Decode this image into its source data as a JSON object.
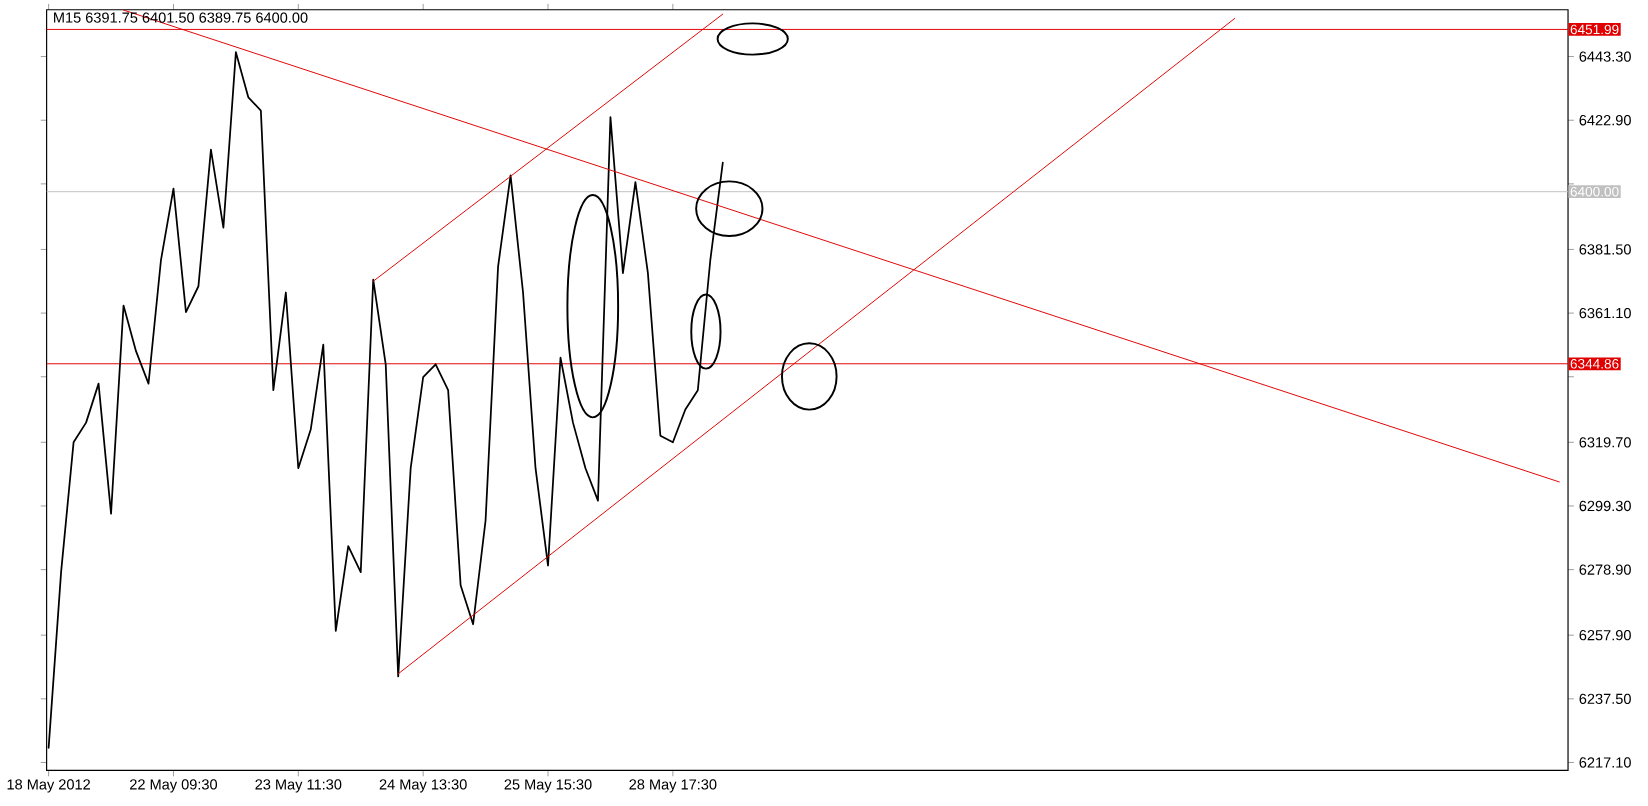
{
  "chart_data": {
    "type": "line",
    "title": "M15  6391.75 6401.50 6389.75 6400.00",
    "categories": [
      "18 May 2012",
      null,
      null,
      null,
      null,
      null,
      null,
      null,
      null,
      null,
      "22 May 09:30",
      null,
      null,
      null,
      null,
      null,
      null,
      null,
      null,
      null,
      "23 May 11:30",
      null,
      null,
      null,
      null,
      null,
      null,
      null,
      null,
      null,
      "24 May 13:30",
      null,
      null,
      null,
      null,
      null,
      null,
      null,
      null,
      null,
      "25 May 15:30",
      null,
      null,
      null,
      null,
      null,
      null,
      null,
      null,
      null,
      "28 May 17:30",
      null,
      null,
      null,
      null,
      null,
      null,
      null,
      null,
      null,
      null,
      null,
      null,
      null,
      null,
      null,
      null,
      null,
      null,
      null,
      null,
      null,
      null,
      null,
      null,
      null,
      null,
      null,
      null,
      null,
      null,
      null,
      null,
      null,
      null,
      null,
      null,
      null,
      null,
      null,
      null,
      null,
      null,
      null,
      null,
      null,
      null,
      null,
      null,
      null,
      null,
      null,
      null,
      null,
      null,
      null,
      null,
      null,
      null,
      null,
      null,
      null,
      null,
      null,
      null,
      null,
      null,
      null,
      null,
      null,
      null,
      null,
      null
    ],
    "ylim": [
      6214.55,
      6458.3
    ],
    "yticks": [
      {
        "value": 6217.1,
        "label": "6217.10"
      },
      {
        "value": 6237.5,
        "label": "6237.50"
      },
      {
        "value": 6257.9,
        "label": "6257.90"
      },
      {
        "value": 6278.9,
        "label": "6278.90"
      },
      {
        "value": 6299.3,
        "label": "6299.30"
      },
      {
        "value": 6319.7,
        "label": "6319.70"
      },
      {
        "value": 6340.7,
        "label": null
      },
      {
        "value": 6361.1,
        "label": "6361.10"
      },
      {
        "value": 6381.5,
        "label": "6381.50"
      },
      {
        "value": 6402.5,
        "label": null
      },
      {
        "value": 6422.9,
        "label": "6422.90"
      },
      {
        "value": 6443.3,
        "label": "6443.30"
      }
    ],
    "series": [
      {
        "color": "#000000",
        "values": [
          6221.8,
          6278.1,
          6319.7,
          6326.0,
          6338.5,
          6296.8,
          6363.5,
          6348.9,
          6338.5,
          6378.1,
          6401.0,
          6361.4,
          6369.7,
          6413.5,
          6388.5,
          6444.7,
          6430.2,
          6426.0,
          6336.4,
          6367.7,
          6311.4,
          6323.9,
          6351.0,
          6259.3,
          6286.4,
          6278.1,
          6371.8,
          6344.7,
          6244.7,
          6311.4,
          6340.6,
          6344.7,
          6336.4,
          6273.9,
          6261.4,
          6294.7,
          6376.0,
          6405.2,
          6367.7,
          6311.4,
          6280.2,
          6346.8,
          6326.0,
          6311.4,
          6301.0,
          6423.9,
          6373.9,
          6403.1,
          6373.9,
          6321.8,
          6319.7,
          6330.2,
          6336.4,
          6378.1,
          6409.3,
          null,
          null,
          null,
          null,
          null,
          null,
          null,
          null,
          null,
          null,
          null,
          null,
          null,
          null,
          null,
          null,
          null,
          null,
          null,
          null,
          null,
          null,
          null,
          null,
          null,
          null,
          null,
          null,
          null,
          null,
          null,
          null,
          null,
          null,
          null,
          null,
          null,
          null,
          null,
          null,
          null,
          null,
          null,
          null,
          null,
          null,
          null,
          null,
          null,
          null,
          null,
          null,
          null,
          null,
          null,
          null,
          null,
          null,
          null,
          null,
          null,
          null,
          null,
          null,
          null,
          null,
          null,
          null
        ]
      },
      {
        "color": "#e00000",
        "values": [
          null,
          null,
          null,
          null,
          null,
          null,
          6458.2,
          null,
          null,
          null,
          null,
          null,
          null,
          null,
          null,
          null,
          null,
          null,
          null,
          null,
          null,
          null,
          null,
          null,
          null,
          null,
          null,
          null,
          null,
          null,
          null,
          null,
          null,
          null,
          null,
          null,
          null,
          null,
          null,
          null,
          null,
          null,
          null,
          null,
          null,
          null,
          null,
          null,
          null,
          null,
          null,
          null,
          null,
          null,
          null,
          null,
          null,
          null,
          null,
          null,
          null,
          null,
          null,
          null,
          null,
          null,
          null,
          null,
          null,
          null,
          null,
          null,
          null,
          null,
          null,
          null,
          null,
          null,
          null,
          null,
          null,
          null,
          null,
          null,
          null,
          null,
          null,
          null,
          null,
          null,
          null,
          null,
          null,
          null,
          null,
          null,
          null,
          null,
          null,
          null,
          null,
          null,
          null,
          null,
          null,
          null,
          null,
          null,
          null,
          null,
          null,
          null,
          null,
          null,
          null,
          null,
          null,
          null,
          null,
          null,
          null,
          6307.0,
          null
        ]
      },
      {
        "color": "#e00000",
        "values": [
          null,
          null,
          null,
          null,
          null,
          null,
          null,
          null,
          null,
          null,
          null,
          null,
          null,
          null,
          null,
          null,
          null,
          null,
          null,
          null,
          null,
          null,
          null,
          null,
          null,
          null,
          null,
          null,
          6245.5,
          null,
          null,
          null,
          null,
          null,
          null,
          null,
          null,
          null,
          null,
          null,
          null,
          null,
          null,
          null,
          null,
          null,
          null,
          null,
          null,
          null,
          null,
          null,
          null,
          null,
          null,
          null,
          null,
          null,
          null,
          null,
          null,
          null,
          null,
          null,
          null,
          null,
          null,
          null,
          null,
          null,
          null,
          null,
          null,
          null,
          null,
          null,
          null,
          null,
          null,
          null,
          null,
          null,
          null,
          null,
          null,
          null,
          null,
          null,
          null,
          null,
          null,
          null,
          null,
          null,
          null,
          6455.5,
          null,
          null,
          null,
          null,
          null,
          null,
          null,
          null,
          null,
          null,
          null,
          null,
          null,
          null,
          null,
          null,
          null,
          null,
          null,
          null,
          null,
          null,
          null,
          null,
          null,
          null,
          null
        ]
      },
      {
        "color": "#e00000",
        "values": [
          null,
          null,
          null,
          null,
          null,
          null,
          null,
          null,
          null,
          null,
          null,
          null,
          null,
          null,
          null,
          null,
          null,
          null,
          null,
          null,
          null,
          null,
          null,
          null,
          null,
          null,
          6371.3,
          null,
          null,
          null,
          null,
          null,
          null,
          null,
          null,
          null,
          null,
          null,
          null,
          null,
          null,
          null,
          null,
          null,
          null,
          null,
          null,
          null,
          null,
          null,
          null,
          null,
          null,
          null,
          6456.9,
          null,
          null,
          null,
          null,
          null,
          null,
          null,
          null,
          null,
          null,
          null,
          null,
          null,
          null,
          null,
          null,
          null,
          null,
          null,
          null,
          null,
          null,
          null,
          null,
          null,
          null,
          null,
          null,
          null,
          null,
          null,
          null,
          null,
          null,
          null,
          null,
          null,
          null,
          null,
          null,
          null,
          null,
          null,
          null,
          null,
          null,
          null,
          null,
          null,
          null,
          null,
          null,
          null,
          null,
          null,
          null,
          null,
          null,
          null,
          null,
          null,
          null,
          null,
          null,
          null,
          null,
          null,
          null
        ]
      }
    ],
    "ref_lines": [
      {
        "axis": "y",
        "value": 6451.99,
        "label": "6451.99",
        "color": "#e00000"
      },
      {
        "axis": "y",
        "value": 6400.0,
        "label": "6400.00",
        "color": "#c0c0c0"
      },
      {
        "axis": "y",
        "value": 6344.86,
        "label": "6344.86",
        "color": "#e00000"
      }
    ]
  }
}
